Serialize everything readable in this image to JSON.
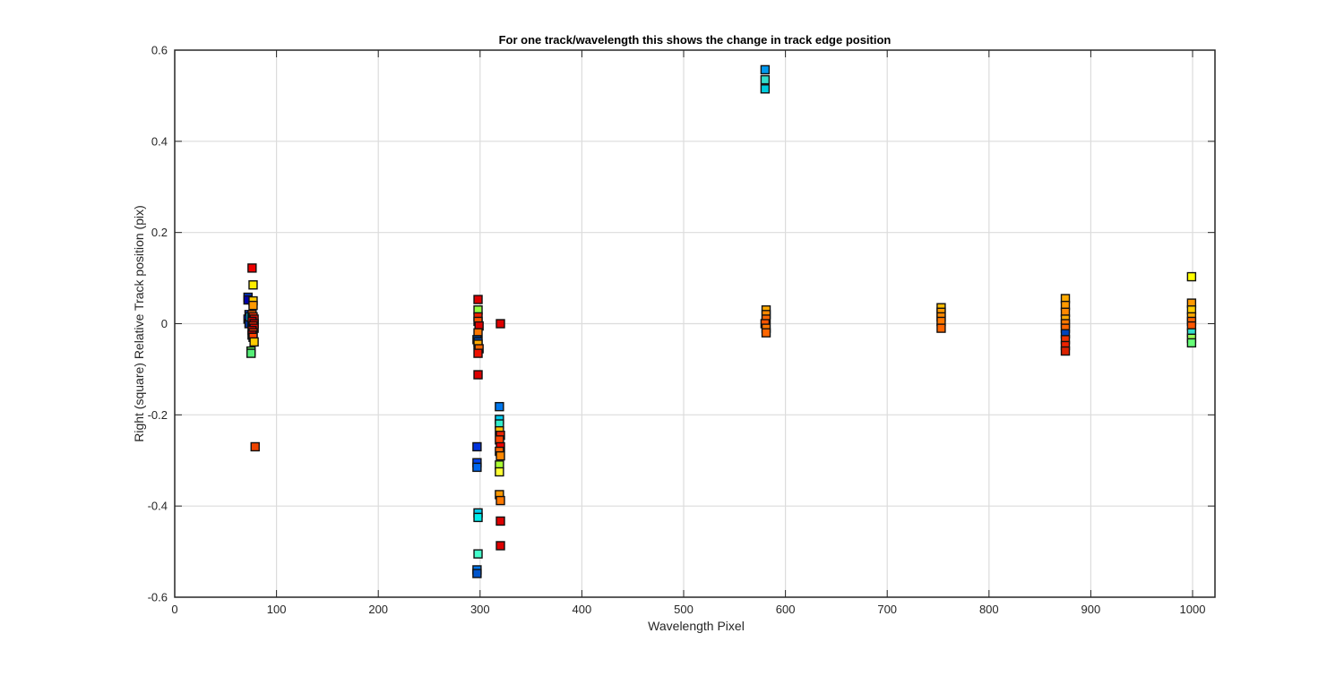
{
  "chart_data": {
    "type": "scatter",
    "title": "For one track/wavelength this shows the change in track edge position",
    "xlabel": "Wavelength Pixel",
    "ylabel": "Right (square) Relative Track position (pix)",
    "xlim": [
      0,
      1022
    ],
    "ylim": [
      -0.6,
      0.6
    ],
    "xticks": [
      0,
      100,
      200,
      300,
      400,
      500,
      600,
      700,
      800,
      900,
      1000
    ],
    "yticks": [
      -0.6,
      -0.4,
      -0.2,
      0,
      0.2,
      0.4,
      0.6
    ],
    "xtick_labels": [
      "0",
      "100",
      "200",
      "300",
      "400",
      "500",
      "600",
      "700",
      "800",
      "900",
      "1000"
    ],
    "ytick_labels": [
      "-0.6",
      "-0.4",
      "-0.2",
      "0",
      "0.2",
      "0.4",
      "0.6"
    ],
    "grid": true,
    "marker": "square",
    "colormap": "jet",
    "points": [
      {
        "x": 72,
        "y": 0.058,
        "color": "#0033cc"
      },
      {
        "x": 72,
        "y": 0.052,
        "color": "#0000aa"
      },
      {
        "x": 73,
        "y": 0.02,
        "color": "#0044dd"
      },
      {
        "x": 72,
        "y": 0.01,
        "color": "#0022bb"
      },
      {
        "x": 73,
        "y": 0.0,
        "color": "#003399"
      },
      {
        "x": 74,
        "y": 0.015,
        "color": "#00ccff"
      },
      {
        "x": 75,
        "y": -0.06,
        "color": "#66ff66"
      },
      {
        "x": 75,
        "y": -0.065,
        "color": "#55ee77"
      },
      {
        "x": 76,
        "y": 0.122,
        "color": "#ee0000"
      },
      {
        "x": 77,
        "y": 0.085,
        "color": "#ffee00"
      },
      {
        "x": 77,
        "y": 0.05,
        "color": "#ffcc00"
      },
      {
        "x": 77,
        "y": 0.04,
        "color": "#ff9900"
      },
      {
        "x": 76,
        "y": 0.02,
        "color": "#ff6600"
      },
      {
        "x": 77,
        "y": 0.015,
        "color": "#ff3300"
      },
      {
        "x": 78,
        "y": 0.01,
        "color": "#ee1100"
      },
      {
        "x": 76,
        "y": 0.005,
        "color": "#dd0000"
      },
      {
        "x": 78,
        "y": 0.0,
        "color": "#cc0000"
      },
      {
        "x": 77,
        "y": -0.005,
        "color": "#ff2200"
      },
      {
        "x": 78,
        "y": -0.01,
        "color": "#ee0000"
      },
      {
        "x": 76,
        "y": -0.015,
        "color": "#dd0000"
      },
      {
        "x": 77,
        "y": -0.02,
        "color": "#ff3300"
      },
      {
        "x": 76,
        "y": -0.025,
        "color": "#cc0000"
      },
      {
        "x": 77,
        "y": -0.03,
        "color": "#ff4400"
      },
      {
        "x": 78,
        "y": -0.04,
        "color": "#ffcc00"
      },
      {
        "x": 79,
        "y": -0.27,
        "color": "#ee4400"
      },
      {
        "x": 298,
        "y": 0.053,
        "color": "#dd0000"
      },
      {
        "x": 298,
        "y": 0.03,
        "color": "#99ff44"
      },
      {
        "x": 298,
        "y": 0.015,
        "color": "#ee2200"
      },
      {
        "x": 298,
        "y": 0.005,
        "color": "#ff5500"
      },
      {
        "x": 299,
        "y": -0.005,
        "color": "#dd0000"
      },
      {
        "x": 298,
        "y": -0.02,
        "color": "#ff7700"
      },
      {
        "x": 297,
        "y": -0.035,
        "color": "#004499"
      },
      {
        "x": 298,
        "y": -0.04,
        "color": "#0055cc"
      },
      {
        "x": 298,
        "y": -0.045,
        "color": "#ffaa00"
      },
      {
        "x": 299,
        "y": -0.055,
        "color": "#ff6600"
      },
      {
        "x": 298,
        "y": -0.065,
        "color": "#ee1100"
      },
      {
        "x": 298,
        "y": -0.112,
        "color": "#dd0000"
      },
      {
        "x": 297,
        "y": -0.27,
        "color": "#0033dd"
      },
      {
        "x": 297,
        "y": -0.305,
        "color": "#0044ee"
      },
      {
        "x": 297,
        "y": -0.315,
        "color": "#0066ee"
      },
      {
        "x": 298,
        "y": -0.415,
        "color": "#00ccee"
      },
      {
        "x": 298,
        "y": -0.425,
        "color": "#00eeee"
      },
      {
        "x": 298,
        "y": -0.505,
        "color": "#44ffcc"
      },
      {
        "x": 297,
        "y": -0.54,
        "color": "#0077ee"
      },
      {
        "x": 297,
        "y": -0.548,
        "color": "#0055cc"
      },
      {
        "x": 320,
        "y": 0.0,
        "color": "#dd0000"
      },
      {
        "x": 319,
        "y": -0.182,
        "color": "#0077ee"
      },
      {
        "x": 319,
        "y": -0.21,
        "color": "#00ccee"
      },
      {
        "x": 319,
        "y": -0.22,
        "color": "#33eecc"
      },
      {
        "x": 319,
        "y": -0.235,
        "color": "#ffbb00"
      },
      {
        "x": 320,
        "y": -0.245,
        "color": "#ee2200"
      },
      {
        "x": 319,
        "y": -0.255,
        "color": "#ff4400"
      },
      {
        "x": 320,
        "y": -0.27,
        "color": "#ee0000"
      },
      {
        "x": 319,
        "y": -0.28,
        "color": "#ff6600"
      },
      {
        "x": 320,
        "y": -0.29,
        "color": "#ff8800"
      },
      {
        "x": 319,
        "y": -0.31,
        "color": "#aaff33"
      },
      {
        "x": 319,
        "y": -0.325,
        "color": "#ffff33"
      },
      {
        "x": 319,
        "y": -0.375,
        "color": "#ff9900"
      },
      {
        "x": 320,
        "y": -0.388,
        "color": "#ff7700"
      },
      {
        "x": 320,
        "y": -0.433,
        "color": "#dd0000"
      },
      {
        "x": 320,
        "y": -0.487,
        "color": "#dd0000"
      },
      {
        "x": 580,
        "y": 0.557,
        "color": "#0099ee"
      },
      {
        "x": 580,
        "y": 0.535,
        "color": "#33ddcc"
      },
      {
        "x": 580,
        "y": 0.515,
        "color": "#00ccdd"
      },
      {
        "x": 581,
        "y": 0.03,
        "color": "#ffaa00"
      },
      {
        "x": 581,
        "y": 0.02,
        "color": "#ff8800"
      },
      {
        "x": 581,
        "y": 0.01,
        "color": "#ff6600"
      },
      {
        "x": 580,
        "y": 0.0,
        "color": "#ff5500"
      },
      {
        "x": 581,
        "y": -0.01,
        "color": "#ff7700"
      },
      {
        "x": 581,
        "y": -0.02,
        "color": "#ff6600"
      },
      {
        "x": 753,
        "y": 0.035,
        "color": "#ffbb00"
      },
      {
        "x": 753,
        "y": 0.025,
        "color": "#ff9900"
      },
      {
        "x": 753,
        "y": 0.015,
        "color": "#ff8800"
      },
      {
        "x": 753,
        "y": 0.005,
        "color": "#ff7700"
      },
      {
        "x": 753,
        "y": -0.01,
        "color": "#ff6600"
      },
      {
        "x": 875,
        "y": 0.055,
        "color": "#ffaa00"
      },
      {
        "x": 875,
        "y": 0.04,
        "color": "#ff9900"
      },
      {
        "x": 875,
        "y": 0.025,
        "color": "#ff8800"
      },
      {
        "x": 875,
        "y": 0.01,
        "color": "#ffaa00"
      },
      {
        "x": 875,
        "y": 0.0,
        "color": "#ff7700"
      },
      {
        "x": 875,
        "y": -0.01,
        "color": "#ff6600"
      },
      {
        "x": 875,
        "y": -0.022,
        "color": "#0044bb"
      },
      {
        "x": 875,
        "y": -0.035,
        "color": "#ee3300"
      },
      {
        "x": 875,
        "y": -0.048,
        "color": "#ee2200"
      },
      {
        "x": 875,
        "y": -0.06,
        "color": "#dd2200"
      },
      {
        "x": 999,
        "y": 0.103,
        "color": "#ffff00"
      },
      {
        "x": 999,
        "y": 0.045,
        "color": "#ff9900"
      },
      {
        "x": 999,
        "y": 0.03,
        "color": "#ffcc00"
      },
      {
        "x": 999,
        "y": 0.015,
        "color": "#ffaa00"
      },
      {
        "x": 999,
        "y": 0.005,
        "color": "#ff6600"
      },
      {
        "x": 999,
        "y": -0.005,
        "color": "#ff5500"
      },
      {
        "x": 999,
        "y": -0.02,
        "color": "#33ddcc"
      },
      {
        "x": 999,
        "y": -0.032,
        "color": "#99ff55"
      },
      {
        "x": 999,
        "y": -0.042,
        "color": "#66ff77"
      }
    ]
  }
}
